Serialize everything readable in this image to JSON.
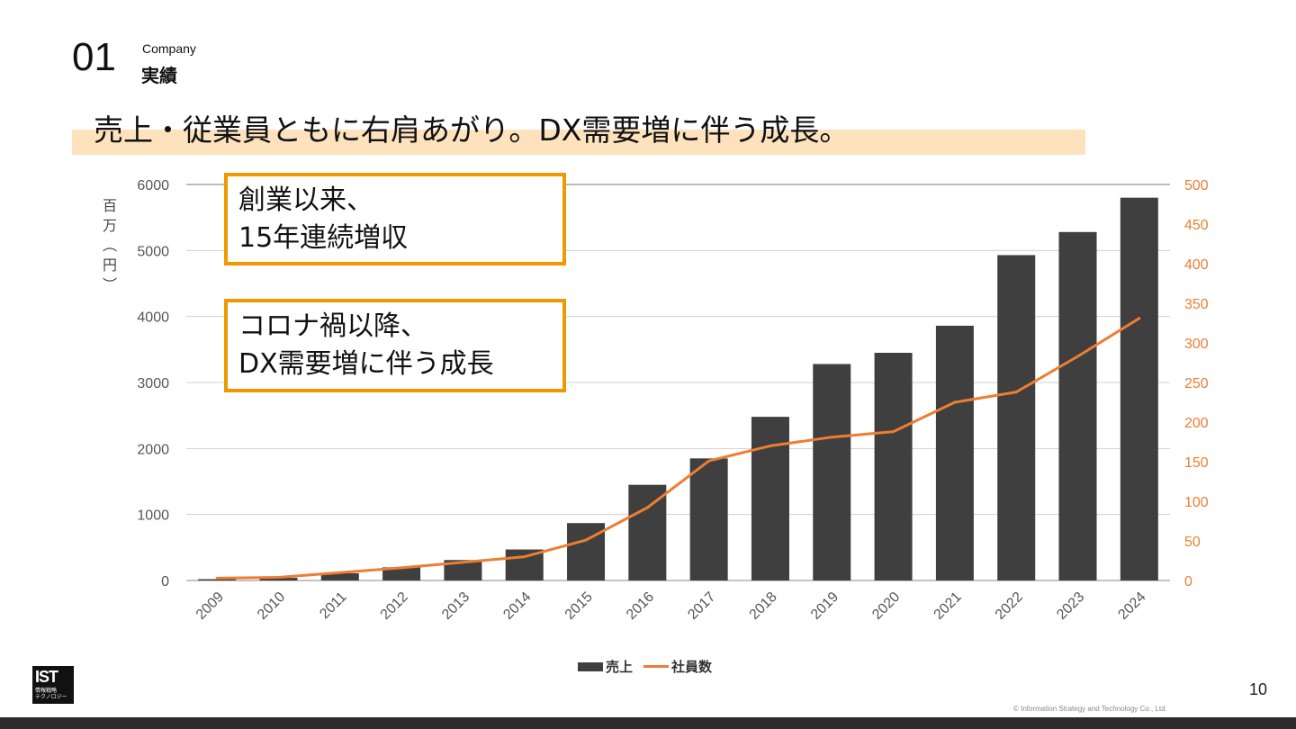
{
  "section": {
    "number": "01",
    "label_en": "Company",
    "label_ja": "実績"
  },
  "headline": "売上・従業員ともに右肩あがり。DX需要増に伴う成長。",
  "callouts": [
    {
      "lines": [
        "創業以来、",
        "15年連続増収"
      ]
    },
    {
      "lines": [
        "コロナ禍以降、",
        "DX需要増に伴う成長"
      ]
    }
  ],
  "colors": {
    "bar": "#3f3f3f",
    "line": "#ed7d31",
    "accent": "#ef9800",
    "highlight": "#fde2bd"
  },
  "chart_data": {
    "type": "bar",
    "categories": [
      "2009",
      "2010",
      "2011",
      "2012",
      "2013",
      "2014",
      "2015",
      "2016",
      "2017",
      "2018",
      "2019",
      "2020",
      "2021",
      "2022",
      "2023",
      "2024"
    ],
    "series": [
      {
        "name": "売上",
        "type": "bar",
        "axis": "left",
        "values": [
          20,
          40,
          110,
          200,
          310,
          470,
          870,
          1450,
          1850,
          2480,
          3280,
          3450,
          3860,
          4930,
          5280,
          5800
        ]
      },
      {
        "name": "社員数",
        "type": "line",
        "axis": "right",
        "values": [
          3,
          4,
          10,
          16,
          23,
          30,
          51,
          92,
          151,
          170,
          181,
          188,
          225,
          238,
          283,
          331
        ]
      }
    ],
    "ylabel": "百万(円)",
    "ylim": [
      0,
      6000
    ],
    "yticks": [
      "0",
      "1000",
      "2000",
      "3000",
      "4000",
      "5000",
      "6000"
    ],
    "y2lim": [
      0,
      500
    ],
    "y2ticks": [
      "0",
      "50",
      "100",
      "150",
      "200",
      "250",
      "300",
      "350",
      "400",
      "450",
      "500"
    ],
    "legend": [
      "売上",
      "社員数"
    ],
    "legend_position": "bottom"
  },
  "footer": {
    "logo": "IST",
    "logo_sub": [
      "情報戦略",
      "テクノロジー"
    ],
    "page_number": "10",
    "copyright": "© Information Strategy and Technology Co., Ltd."
  }
}
